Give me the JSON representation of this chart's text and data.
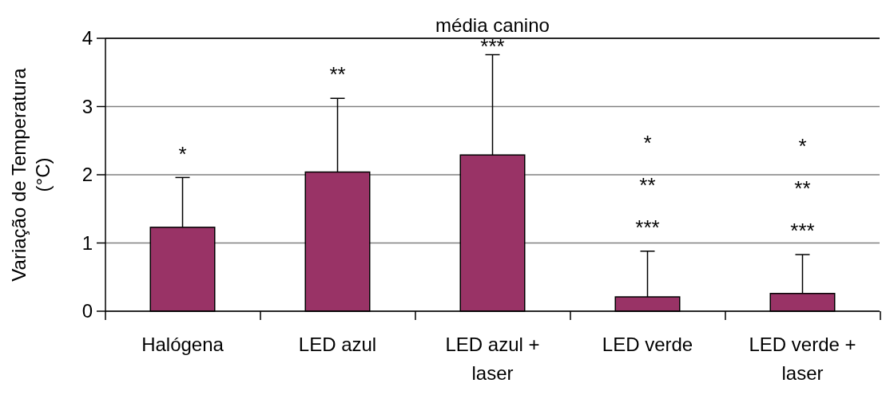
{
  "chart_data": {
    "type": "bar",
    "title": "média canino",
    "ylabel": "Variação de Temperatura (°C)",
    "categories": [
      "Halógena",
      "LED azul",
      "LED azul + laser",
      "LED verde",
      "LED verde + laser"
    ],
    "values": [
      1.23,
      2.04,
      2.29,
      0.21,
      0.26
    ],
    "errors": [
      [
        1.23,
        1.96
      ],
      [
        2.04,
        3.12
      ],
      [
        2.29,
        3.76
      ],
      [
        0.21,
        0.88
      ],
      [
        0.26,
        0.83
      ]
    ],
    "color": "#993366",
    "ylim": [
      0,
      4
    ],
    "yticks": [
      0,
      1,
      2,
      3,
      4
    ],
    "grid": "y",
    "annotations": [
      "*",
      "**",
      "***",
      "*",
      "**",
      "***",
      "*",
      "**",
      "***"
    ]
  }
}
